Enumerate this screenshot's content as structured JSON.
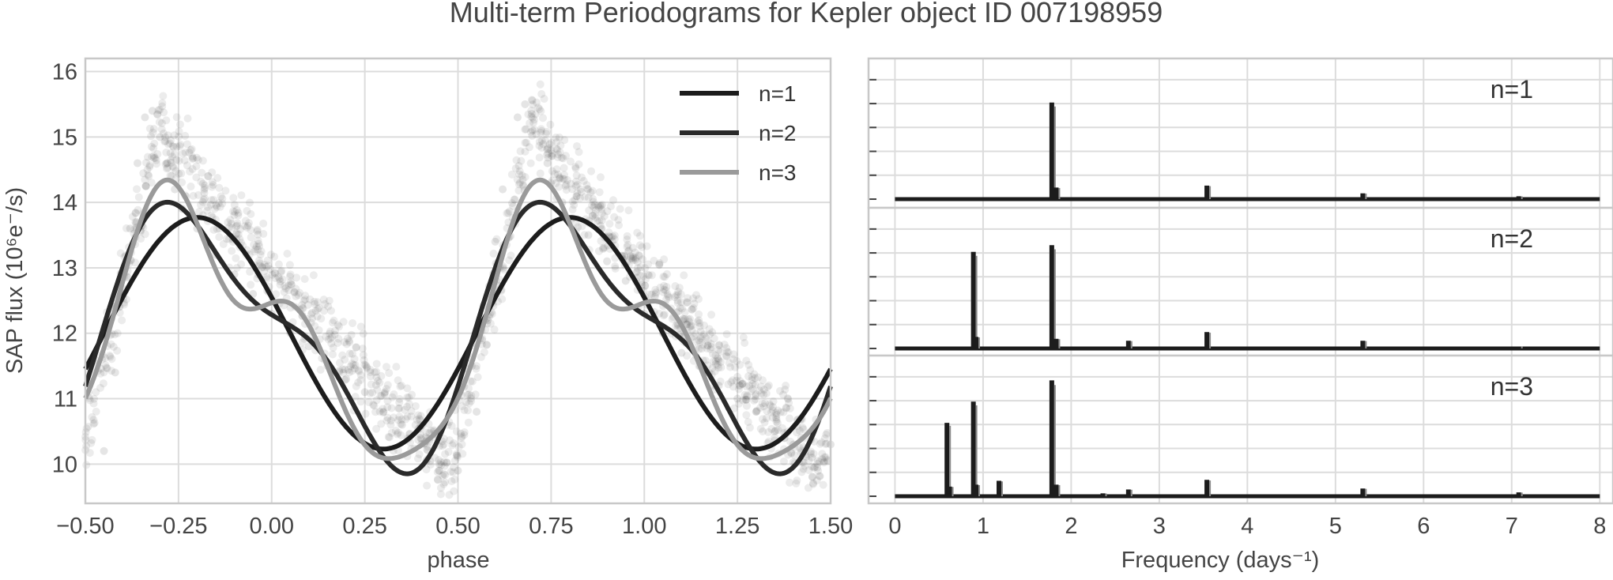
{
  "figure": {
    "title": "Multi-term Periodograms for Kepler object ID 007198959"
  },
  "chart_data": [
    {
      "type": "scatter",
      "xlabel": "phase",
      "ylabel": "SAP flux (10⁶e⁻/s)",
      "xlim": [
        -0.5,
        1.5
      ],
      "ylim": [
        9.4,
        16.2
      ],
      "xticks": [
        "−0.50",
        "−0.25",
        "0.00",
        "0.25",
        "0.50",
        "0.75",
        "1.00",
        "1.25",
        "1.50"
      ],
      "xtick_values": [
        -0.5,
        -0.25,
        0.0,
        0.25,
        0.5,
        0.75,
        1.0,
        1.25,
        1.5
      ],
      "yticks": [
        "10",
        "11",
        "12",
        "13",
        "14",
        "15",
        "16"
      ],
      "ytick_values": [
        10,
        11,
        12,
        13,
        14,
        15,
        16
      ],
      "grid": true,
      "legend_position": "top-right",
      "scatter_description": "phase-folded light curve points (grey, semi-transparent)",
      "scatter_points": [
        [
          -0.45,
          10.2
        ],
        [
          -0.42,
          11.4
        ],
        [
          -0.4,
          12.6
        ],
        [
          -0.38,
          13.6
        ],
        [
          -0.36,
          14.6
        ],
        [
          -0.34,
          15.3
        ],
        [
          -0.32,
          15.4
        ],
        [
          -0.3,
          15.0
        ],
        [
          -0.28,
          14.6
        ],
        [
          -0.26,
          14.2
        ],
        [
          -0.24,
          13.9
        ],
        [
          -0.2,
          13.6
        ],
        [
          -0.15,
          13.2
        ],
        [
          -0.1,
          12.9
        ],
        [
          -0.05,
          12.6
        ],
        [
          0.0,
          12.3
        ],
        [
          0.05,
          12.0
        ],
        [
          0.1,
          11.8
        ],
        [
          0.15,
          11.5
        ],
        [
          0.2,
          11.3
        ],
        [
          0.25,
          11.1
        ],
        [
          0.3,
          10.8
        ],
        [
          0.35,
          10.6
        ],
        [
          0.4,
          10.4
        ],
        [
          0.45,
          10.0
        ],
        [
          0.5,
          9.9
        ],
        [
          0.55,
          10.8
        ],
        [
          0.58,
          12.2
        ],
        [
          0.6,
          13.4
        ],
        [
          0.62,
          14.2
        ],
        [
          0.66,
          15.3
        ],
        [
          0.68,
          15.5
        ],
        [
          0.7,
          15.1
        ],
        [
          0.74,
          14.6
        ],
        [
          0.78,
          14.0
        ],
        [
          0.85,
          13.5
        ],
        [
          0.9,
          13.1
        ],
        [
          0.95,
          12.8
        ],
        [
          1.0,
          12.3
        ],
        [
          1.05,
          12.0
        ],
        [
          1.1,
          11.7
        ],
        [
          1.15,
          11.5
        ],
        [
          1.2,
          11.2
        ],
        [
          1.25,
          11.0
        ],
        [
          1.3,
          10.8
        ],
        [
          1.35,
          10.5
        ],
        [
          1.4,
          10.3
        ],
        [
          1.45,
          10.1
        ],
        [
          1.5,
          10.3
        ]
      ],
      "series": [
        {
          "name": "n=1",
          "color": "#1c1c1c",
          "mean": 12.0,
          "harmonics": [
            [
              1.77,
              -0.32
            ]
          ]
        },
        {
          "name": "n=2",
          "color": "#2a2a2a",
          "mean": 12.0,
          "harmonics": [
            [
              1.77,
              -0.32
            ],
            [
              0.62,
              0.31
            ]
          ]
        },
        {
          "name": "n=3",
          "color": "#9a9a9a",
          "mean": 12.0,
          "harmonics": [
            [
              1.77,
              -0.32
            ],
            [
              0.62,
              0.31
            ],
            [
              0.34,
              -0.2
            ]
          ]
        }
      ]
    },
    {
      "type": "line",
      "xlabel": "Frequency (days⁻¹)",
      "xlim": [
        -0.3,
        8.15
      ],
      "xticks": [
        "0",
        "1",
        "2",
        "3",
        "4",
        "5",
        "6",
        "7",
        "8"
      ],
      "xtick_values": [
        0,
        1,
        2,
        3,
        4,
        5,
        6,
        7,
        8
      ],
      "grid": true,
      "panels": [
        {
          "label": "n=1",
          "peaks": [
            [
              1.78,
              1.0
            ],
            [
              1.83,
              0.12
            ],
            [
              3.54,
              0.14
            ],
            [
              5.31,
              0.06
            ],
            [
              7.08,
              0.03
            ]
          ]
        },
        {
          "label": "n=2",
          "peaks": [
            [
              0.89,
              1.0
            ],
            [
              0.92,
              0.12
            ],
            [
              1.78,
              1.07
            ],
            [
              1.83,
              0.1
            ],
            [
              2.65,
              0.08
            ],
            [
              3.54,
              0.17
            ],
            [
              5.31,
              0.08
            ],
            [
              7.08,
              0.02
            ]
          ]
        },
        {
          "label": "n=3",
          "peaks": [
            [
              0.59,
              0.76
            ],
            [
              0.62,
              0.1
            ],
            [
              0.89,
              0.98
            ],
            [
              0.92,
              0.12
            ],
            [
              1.18,
              0.16
            ],
            [
              1.78,
              1.2
            ],
            [
              1.83,
              0.12
            ],
            [
              2.36,
              0.03
            ],
            [
              2.65,
              0.07
            ],
            [
              3.54,
              0.17
            ],
            [
              5.31,
              0.08
            ],
            [
              7.08,
              0.04
            ]
          ]
        }
      ]
    }
  ]
}
